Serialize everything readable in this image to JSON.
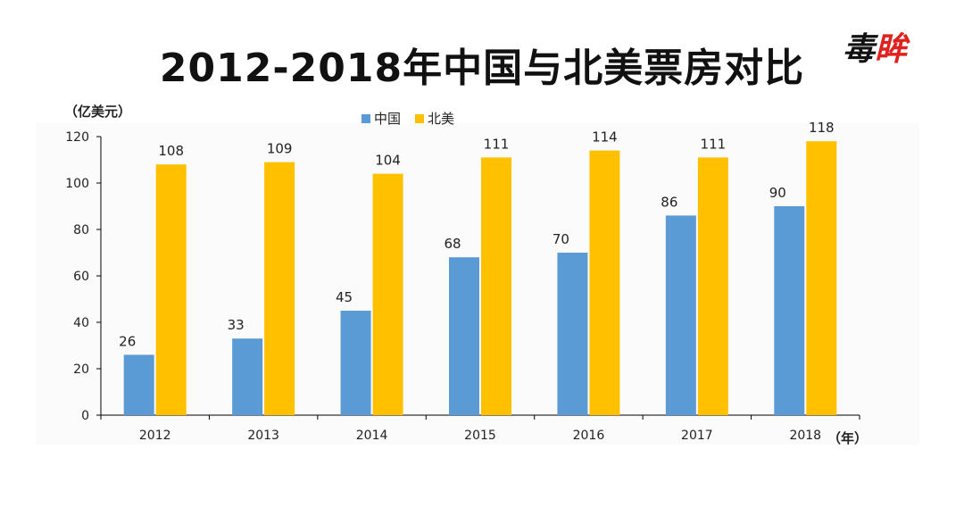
{
  "page": {
    "title": "2012-2018年中国与北美票房对比",
    "logo_text_left": "毒",
    "logo_text_right": "眸",
    "unit_label": "（亿美元）",
    "year_unit": "（年）"
  },
  "colors": {
    "china": "#5b9bd5",
    "north_america": "#ffc000",
    "axis": "#000000"
  },
  "chart_data": {
    "type": "bar",
    "title": "2012-2018年中国与北美票房对比",
    "xlabel": "（年）",
    "ylabel": "（亿美元）",
    "ylim": [
      0,
      120
    ],
    "yticks": [
      0,
      20,
      40,
      60,
      80,
      100,
      120
    ],
    "categories": [
      "2012",
      "2013",
      "2014",
      "2015",
      "2016",
      "2017",
      "2018"
    ],
    "legend_position": "top-center",
    "series": [
      {
        "name": "中国",
        "values": [
          26,
          33,
          45,
          68,
          70,
          86,
          90
        ]
      },
      {
        "name": "北美",
        "values": [
          108,
          109,
          104,
          111,
          114,
          111,
          118
        ]
      }
    ]
  }
}
